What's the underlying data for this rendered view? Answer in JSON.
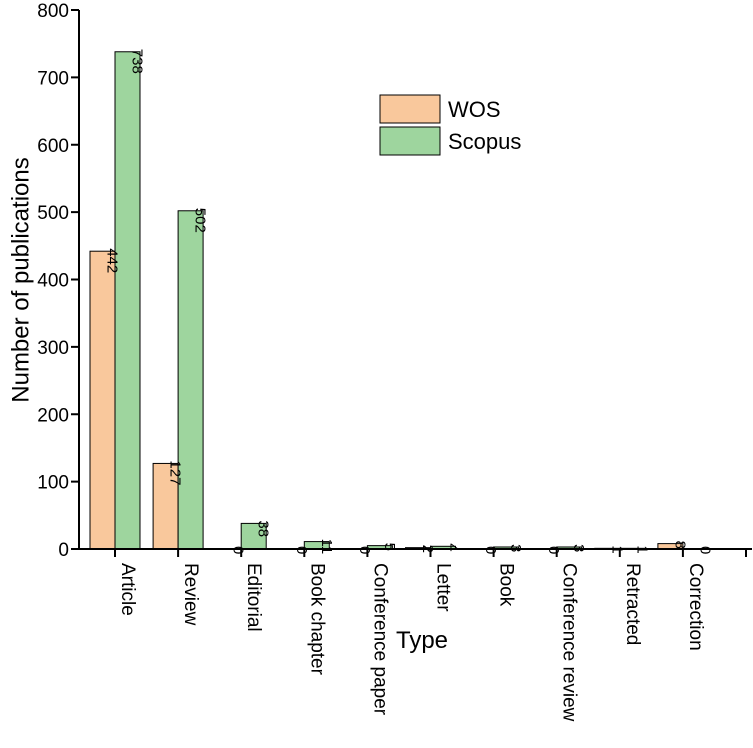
{
  "chart_data": {
    "type": "bar",
    "title": "",
    "xlabel": "Type",
    "ylabel": "Number of publications",
    "ylim": [
      0,
      800
    ],
    "yticks": [
      0,
      100,
      200,
      300,
      400,
      500,
      600,
      700,
      800
    ],
    "grid": false,
    "legend_position": "top-center",
    "categories": [
      "Article",
      "Review",
      "Editorial",
      "Book chapter",
      "Conference paper",
      "Letter",
      "Book",
      "Conference review",
      "Retracted",
      "Correction"
    ],
    "series": [
      {
        "name": "WOS",
        "color": "#f9c89c",
        "values": [
          442,
          127,
          0,
          0,
          0,
          2,
          0,
          0,
          1,
          8
        ]
      },
      {
        "name": "Scopus",
        "color": "#9ed59e",
        "values": [
          738,
          502,
          38,
          11,
          5,
          4,
          3,
          3,
          1,
          0
        ]
      }
    ]
  }
}
